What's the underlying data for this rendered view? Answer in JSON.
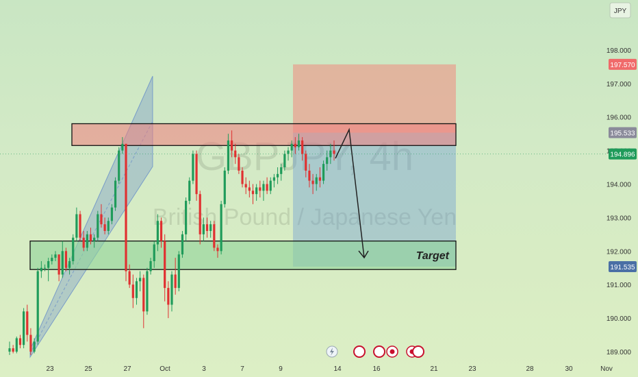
{
  "currency_label": "JPY",
  "watermark": {
    "symbol": "GBPJPY, 4h",
    "name": "British Pound / Japanese Yen"
  },
  "price_badges": [
    {
      "value": "197.570",
      "color": "#f06a6a"
    },
    {
      "value": "195.533",
      "color": "#8a8a9a"
    },
    {
      "value": "194.896",
      "color": "#1f9b5a"
    },
    {
      "value": "191.535",
      "color": "#4a6fa5"
    }
  ],
  "annotation": {
    "target_label": "Target"
  },
  "chart_data": {
    "type": "candlestick",
    "y_ticks": [
      "189.000",
      "190.000",
      "191.000",
      "192.000",
      "193.000",
      "194.000",
      "195.000",
      "196.000",
      "197.000",
      "198.000"
    ],
    "x_ticks": [
      "23",
      "25",
      "27",
      "Oct",
      "3",
      "7",
      "9",
      "14",
      "16",
      "21",
      "23",
      "28",
      "30",
      "Nov"
    ],
    "ylim": [
      188.8,
      201.5
    ],
    "last_price": 194.896,
    "zones": {
      "resistance": [
        195.15,
        195.8
      ],
      "support": [
        191.45,
        192.3
      ],
      "trade_stop": [
        195.533,
        197.57
      ],
      "trade_target": [
        191.535,
        195.533
      ]
    },
    "candles": [
      [
        189.0,
        189.3,
        188.9,
        189.1
      ],
      [
        189.1,
        189.2,
        188.95,
        189.0
      ],
      [
        189.0,
        189.45,
        188.95,
        189.4
      ],
      [
        189.4,
        189.5,
        189.1,
        189.2
      ],
      [
        189.2,
        190.3,
        189.1,
        190.2
      ],
      [
        190.2,
        190.4,
        189.3,
        189.5
      ],
      [
        189.5,
        189.7,
        188.9,
        189.0
      ],
      [
        189.0,
        189.4,
        188.95,
        189.3
      ],
      [
        189.3,
        191.5,
        189.2,
        191.4
      ],
      [
        191.4,
        191.7,
        191.2,
        191.5
      ],
      [
        191.5,
        191.6,
        191.4,
        191.5
      ],
      [
        191.5,
        191.8,
        191.1,
        191.7
      ],
      [
        191.7,
        191.9,
        191.6,
        191.8
      ],
      [
        191.8,
        192.0,
        191.7,
        191.9
      ],
      [
        191.9,
        191.8,
        191.1,
        191.3
      ],
      [
        191.3,
        192.3,
        191.2,
        192.0
      ],
      [
        192.0,
        192.1,
        191.4,
        191.5
      ],
      [
        191.5,
        191.8,
        191.3,
        191.7
      ],
      [
        191.7,
        192.5,
        191.6,
        192.4
      ],
      [
        192.4,
        193.3,
        192.3,
        193.1
      ],
      [
        193.1,
        193.2,
        192.3,
        192.4
      ],
      [
        192.4,
        192.6,
        192.0,
        192.1
      ],
      [
        192.1,
        192.6,
        192.0,
        192.5
      ],
      [
        192.5,
        192.7,
        192.2,
        192.3
      ],
      [
        192.3,
        192.5,
        192.1,
        192.4
      ],
      [
        192.4,
        193.2,
        192.3,
        193.1
      ],
      [
        193.1,
        193.4,
        192.7,
        192.8
      ],
      [
        192.8,
        193.0,
        192.5,
        192.6
      ],
      [
        192.6,
        193.0,
        192.5,
        192.9
      ],
      [
        192.9,
        193.4,
        192.8,
        193.3
      ],
      [
        193.3,
        194.2,
        193.2,
        194.1
      ],
      [
        194.1,
        195.1,
        194.0,
        195.0
      ],
      [
        195.0,
        195.4,
        194.9,
        195.2
      ],
      [
        195.2,
        195.1,
        191.1,
        191.4
      ],
      [
        191.4,
        191.6,
        190.9,
        191.0
      ],
      [
        191.0,
        191.3,
        190.3,
        190.6
      ],
      [
        190.6,
        191.2,
        190.4,
        191.1
      ],
      [
        191.1,
        191.4,
        190.8,
        191.2
      ],
      [
        191.2,
        191.3,
        189.7,
        190.2
      ],
      [
        190.2,
        191.5,
        190.1,
        191.4
      ],
      [
        191.4,
        191.8,
        191.3,
        191.7
      ],
      [
        191.7,
        192.3,
        191.5,
        192.2
      ],
      [
        192.2,
        193.1,
        192.0,
        192.9
      ],
      [
        192.9,
        193.0,
        192.1,
        192.3
      ],
      [
        192.3,
        192.5,
        190.5,
        190.9
      ],
      [
        190.9,
        191.1,
        190.0,
        190.4
      ],
      [
        190.4,
        191.4,
        190.2,
        191.3
      ],
      [
        191.3,
        191.8,
        190.7,
        190.9
      ],
      [
        190.9,
        192.0,
        190.8,
        191.9
      ],
      [
        191.9,
        192.6,
        191.8,
        192.5
      ],
      [
        192.5,
        193.6,
        192.3,
        193.5
      ],
      [
        193.5,
        194.2,
        193.4,
        194.1
      ],
      [
        194.1,
        195.0,
        194.0,
        194.9
      ],
      [
        194.9,
        195.0,
        193.5,
        193.7
      ],
      [
        193.7,
        193.8,
        192.2,
        192.5
      ],
      [
        192.5,
        193.0,
        192.3,
        192.8
      ],
      [
        192.8,
        193.0,
        192.4,
        192.6
      ],
      [
        192.6,
        192.9,
        192.4,
        192.8
      ],
      [
        192.8,
        192.9,
        192.0,
        192.1
      ],
      [
        192.1,
        192.2,
        191.8,
        192.0
      ],
      [
        192.0,
        193.5,
        191.9,
        193.4
      ],
      [
        193.4,
        194.5,
        193.3,
        194.4
      ],
      [
        194.4,
        195.5,
        194.3,
        195.3
      ],
      [
        195.3,
        195.6,
        194.8,
        195.0
      ],
      [
        195.0,
        195.2,
        194.6,
        194.8
      ],
      [
        194.8,
        194.9,
        194.3,
        194.4
      ],
      [
        194.4,
        194.5,
        193.9,
        194.0
      ],
      [
        194.0,
        194.2,
        193.7,
        193.9
      ],
      [
        193.9,
        194.1,
        193.6,
        193.8
      ],
      [
        193.8,
        194.0,
        193.4,
        193.7
      ],
      [
        193.7,
        194.0,
        193.5,
        193.9
      ],
      [
        193.9,
        194.1,
        193.6,
        193.8
      ],
      [
        193.8,
        194.1,
        193.5,
        194.0
      ],
      [
        194.0,
        194.2,
        193.7,
        193.8
      ],
      [
        193.8,
        194.2,
        193.7,
        194.1
      ],
      [
        194.1,
        194.3,
        193.9,
        194.2
      ],
      [
        194.2,
        194.5,
        194.0,
        194.3
      ],
      [
        194.3,
        194.6,
        194.1,
        194.5
      ],
      [
        194.5,
        195.0,
        194.4,
        194.9
      ],
      [
        194.9,
        195.1,
        194.7,
        195.0
      ],
      [
        195.0,
        195.3,
        194.8,
        195.2
      ],
      [
        195.2,
        195.4,
        194.9,
        195.1
      ],
      [
        195.1,
        195.5,
        195.0,
        195.3
      ],
      [
        195.3,
        195.4,
        194.7,
        194.9
      ],
      [
        194.9,
        195.0,
        194.2,
        194.4
      ],
      [
        194.4,
        194.6,
        193.9,
        194.1
      ],
      [
        194.1,
        194.3,
        193.7,
        194.0
      ],
      [
        194.0,
        194.3,
        193.8,
        194.2
      ],
      [
        194.2,
        194.5,
        193.9,
        194.1
      ],
      [
        194.1,
        194.7,
        194.0,
        194.6
      ],
      [
        194.6,
        195.0,
        194.4,
        194.8
      ],
      [
        194.8,
        195.2,
        194.6,
        195.0
      ],
      [
        195.0,
        195.3,
        194.7,
        194.9
      ]
    ],
    "projection": [
      [
        490,
        231
      ],
      [
        510,
        189
      ],
      [
        532,
        376
      ]
    ]
  }
}
